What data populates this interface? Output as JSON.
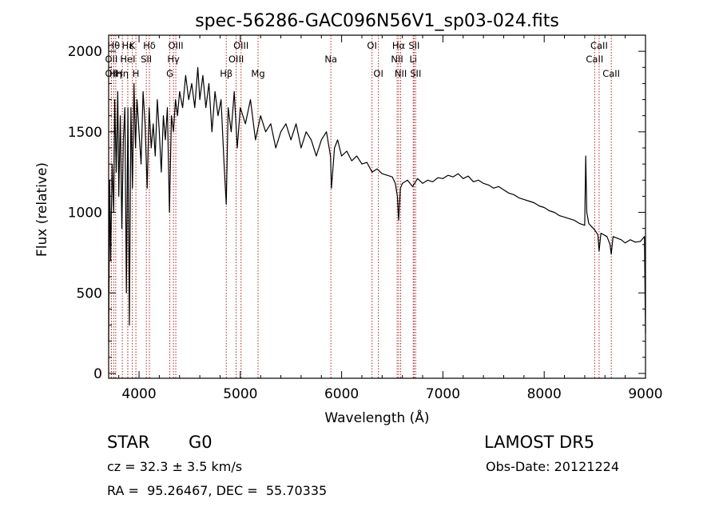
{
  "chart_data": {
    "type": "line",
    "title": "spec-56286-GAC096N56V1_sp03-024.fits",
    "xlabel": "Wavelength (Å)",
    "ylabel": "Flux (relative)",
    "xlim": [
      3700,
      9000
    ],
    "ylim": [
      -30,
      2100
    ],
    "x_ticks": [
      4000,
      5000,
      6000,
      7000,
      8000,
      9000
    ],
    "y_ticks": [
      0,
      500,
      1000,
      1500,
      2000
    ],
    "grid": false,
    "line_color": "#000000",
    "marker_color": "#b22222",
    "series": [
      {
        "x": [
          3700,
          3710,
          3720,
          3735,
          3750,
          3760,
          3775,
          3790,
          3800,
          3815,
          3830,
          3845,
          3860,
          3875,
          3890,
          3905,
          3920,
          3935,
          3950,
          3965,
          3980,
          4000,
          4020,
          4040,
          4060,
          4080,
          4100,
          4120,
          4140,
          4160,
          4180,
          4200,
          4220,
          4240,
          4260,
          4280,
          4300,
          4320,
          4340,
          4360,
          4380,
          4400,
          4430,
          4460,
          4490,
          4520,
          4550,
          4580,
          4600,
          4630,
          4660,
          4690,
          4720,
          4750,
          4780,
          4810,
          4840,
          4861,
          4880,
          4910,
          4940,
          4970,
          5000,
          5050,
          5100,
          5150,
          5200,
          5250,
          5300,
          5350,
          5400,
          5450,
          5500,
          5550,
          5600,
          5650,
          5700,
          5750,
          5800,
          5850,
          5890,
          5900,
          5930,
          5960,
          6000,
          6050,
          6100,
          6150,
          6200,
          6250,
          6300,
          6350,
          6400,
          6450,
          6500,
          6530,
          6550,
          6563,
          6580,
          6600,
          6650,
          6700,
          6750,
          6800,
          6850,
          6900,
          6950,
          7000,
          7050,
          7100,
          7150,
          7200,
          7250,
          7300,
          7350,
          7400,
          7450,
          7500,
          7550,
          7600,
          7650,
          7700,
          7750,
          7800,
          7850,
          7900,
          7950,
          8000,
          8050,
          8100,
          8150,
          8200,
          8250,
          8300,
          8350,
          8400,
          8410,
          8420,
          8440,
          8470,
          8500,
          8530,
          8542,
          8560,
          8590,
          8620,
          8650,
          8662,
          8680,
          8720,
          8760,
          8800,
          8850,
          8900,
          8950,
          8990,
          9000
        ],
        "y": [
          200,
          1200,
          700,
          1300,
          1000,
          1700,
          1250,
          1750,
          1100,
          1600,
          900,
          1450,
          1650,
          500,
          1650,
          300,
          1650,
          1150,
          1800,
          1400,
          1700,
          1500,
          1300,
          1750,
          1550,
          1150,
          1650,
          1400,
          1550,
          1350,
          1700,
          1500,
          1250,
          1600,
          1450,
          1650,
          1000,
          1600,
          1500,
          1700,
          1600,
          1750,
          1650,
          1850,
          1700,
          1800,
          1650,
          1900,
          1700,
          1850,
          1650,
          1800,
          1500,
          1750,
          1600,
          1700,
          1300,
          1050,
          1650,
          1500,
          1750,
          1400,
          1650,
          1550,
          1700,
          1450,
          1600,
          1500,
          1550,
          1400,
          1500,
          1550,
          1450,
          1550,
          1400,
          1500,
          1450,
          1350,
          1450,
          1500,
          1350,
          1150,
          1400,
          1450,
          1350,
          1380,
          1320,
          1350,
          1300,
          1310,
          1250,
          1270,
          1240,
          1230,
          1220,
          1180,
          1100,
          950,
          1150,
          1180,
          1200,
          1160,
          1210,
          1180,
          1200,
          1190,
          1215,
          1210,
          1230,
          1220,
          1240,
          1210,
          1225,
          1190,
          1200,
          1180,
          1170,
          1150,
          1160,
          1140,
          1120,
          1110,
          1090,
          1080,
          1070,
          1060,
          1040,
          1030,
          1010,
          1000,
          980,
          970,
          960,
          950,
          930,
          920,
          1350,
          1000,
          930,
          910,
          890,
          860,
          760,
          870,
          860,
          850,
          800,
          740,
          850,
          840,
          830,
          810,
          830,
          815,
          820,
          850,
          250
        ]
      }
    ],
    "lines": [
      {
        "x": 3727,
        "label": "OII",
        "row": 1
      },
      {
        "x": 3727,
        "label": "OII",
        "row": 2
      },
      {
        "x": 3750,
        "label": "Hθ",
        "row": 0
      },
      {
        "x": 3770,
        "label": "Hη",
        "row": 2
      },
      {
        "x": 3835,
        "label": "Hη",
        "row": 2
      },
      {
        "x": 3889,
        "label": "Hε",
        "row": 0
      },
      {
        "x": 3889,
        "label": "HeI",
        "row": 1
      },
      {
        "x": 3934,
        "label": "K",
        "row": 0
      },
      {
        "x": 3969,
        "label": "H",
        "row": 2
      },
      {
        "x": 4072,
        "label": "SII",
        "row": 1
      },
      {
        "x": 4102,
        "label": "Hδ",
        "row": 0
      },
      {
        "x": 4304,
        "label": "G",
        "row": 2
      },
      {
        "x": 4340,
        "label": "Hγ",
        "row": 1
      },
      {
        "x": 4363,
        "label": "OIII",
        "row": 0
      },
      {
        "x": 4861,
        "label": "Hβ",
        "row": 2
      },
      {
        "x": 4959,
        "label": "OIII",
        "row": 1
      },
      {
        "x": 5007,
        "label": "OIII",
        "row": 0
      },
      {
        "x": 5175,
        "label": "Mg",
        "row": 2
      },
      {
        "x": 5894,
        "label": "Na",
        "row": 1
      },
      {
        "x": 6300,
        "label": "OI",
        "row": 0
      },
      {
        "x": 6363,
        "label": "OI",
        "row": 2
      },
      {
        "x": 6548,
        "label": "NII",
        "row": 1
      },
      {
        "x": 6563,
        "label": "Hα",
        "row": 0
      },
      {
        "x": 6583,
        "label": "NII",
        "row": 2
      },
      {
        "x": 6707,
        "label": "Li",
        "row": 1
      },
      {
        "x": 6716,
        "label": "SII",
        "row": 0
      },
      {
        "x": 6731,
        "label": "SII",
        "row": 2
      },
      {
        "x": 8498,
        "label": "CaII",
        "row": 1
      },
      {
        "x": 8542,
        "label": "CaII",
        "row": 0
      },
      {
        "x": 8662,
        "label": "CaII",
        "row": 2
      }
    ]
  },
  "footer": {
    "object_class": "STAR",
    "subclass": "G0",
    "redshift": "cz = 32.3 ± 3.5 km/s",
    "coords": "RA =  95.26467, DEC =  55.70335",
    "survey": "LAMOST DR5",
    "obs_date": "Obs-Date: 20121224"
  }
}
